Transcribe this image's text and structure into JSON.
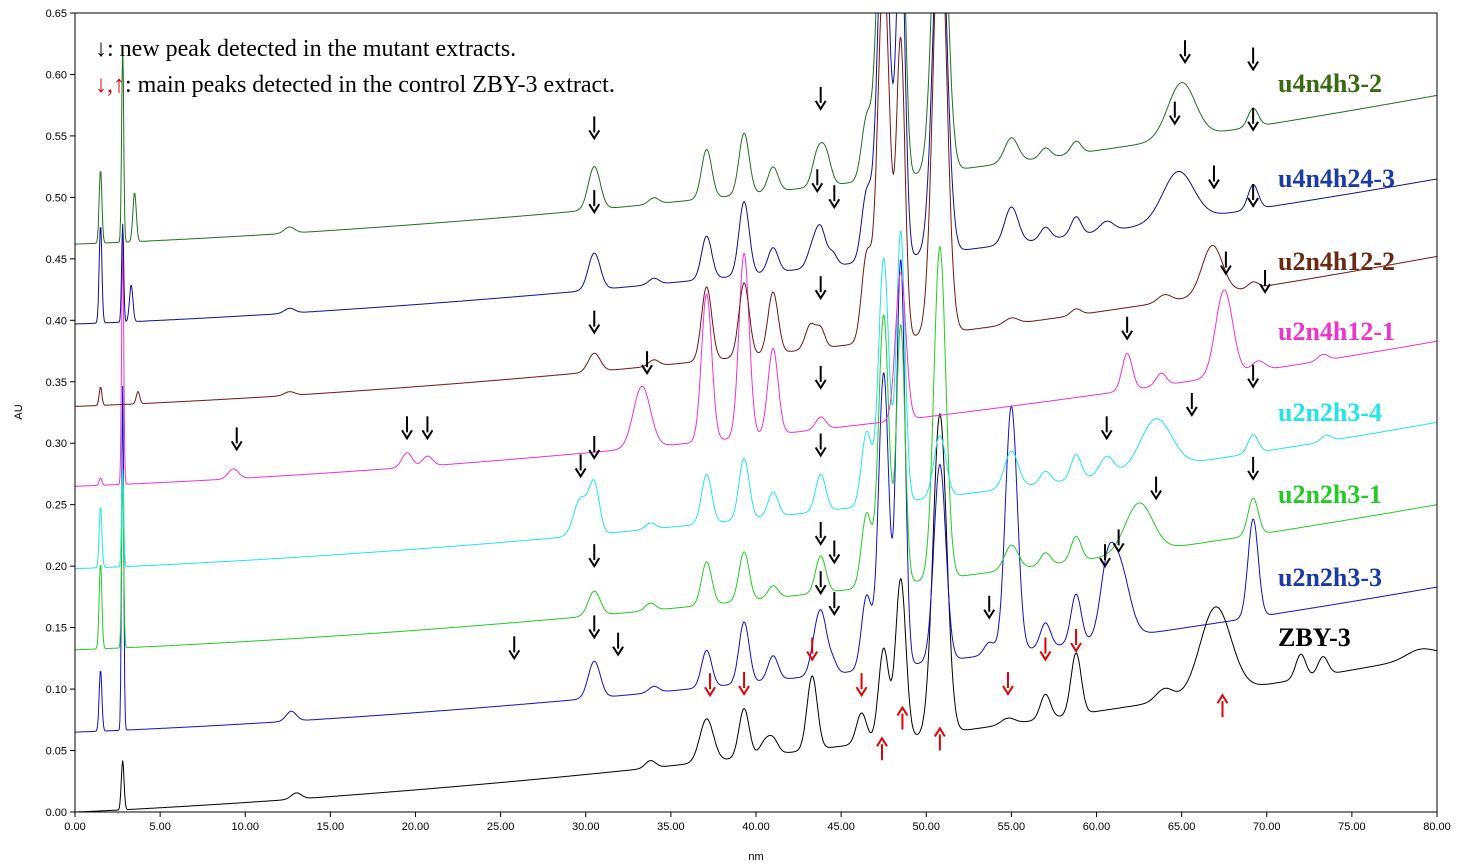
{
  "chart_data": {
    "type": "line",
    "title": "",
    "xlabel": "nm",
    "ylabel": "AU",
    "xlim": [
      0,
      80
    ],
    "ylim": [
      0,
      0.65
    ],
    "x_ticks": [
      0,
      5,
      10,
      15,
      20,
      25,
      30,
      35,
      40,
      45,
      50,
      55,
      60,
      65,
      70,
      75,
      80
    ],
    "x_tick_labels": [
      "0.00",
      "5.00",
      "10.00",
      "15.00",
      "20.00",
      "25.00",
      "30.00",
      "35.00",
      "40.00",
      "45.00",
      "50.00",
      "55.00",
      "60.00",
      "65.00",
      "70.00",
      "75.00",
      "80.00"
    ],
    "y_ticks": [
      0,
      0.05,
      0.1,
      0.15,
      0.2,
      0.25,
      0.3,
      0.35,
      0.4,
      0.45,
      0.5,
      0.55,
      0.6,
      0.65
    ],
    "y_tick_labels": [
      "0.00",
      "0.05",
      "0.10",
      "0.15",
      "0.20",
      "0.25",
      "0.30",
      "0.35",
      "0.40",
      "0.45",
      "0.50",
      "0.55",
      "0.60",
      "0.65"
    ],
    "annotations": {
      "line1_symbol": "↓",
      "line1_text": ": new peak detected in the mutant extracts.",
      "line2_symbol": "↓,↑",
      "line2_text": ": main peaks detected in the control ZBY-3 extract."
    },
    "series": [
      {
        "name": "ZBY-3",
        "color": "#000000",
        "baseline": 0.0,
        "end": 0.128,
        "ramp": 0.07,
        "peaks": [
          [
            2.8,
            0.04,
            0.08
          ],
          [
            13,
            0.005,
            0.3
          ],
          [
            33.8,
            0.006,
            0.3
          ],
          [
            37.1,
            0.035,
            0.4
          ],
          [
            39.3,
            0.04,
            0.3
          ],
          [
            40.5,
            0.01,
            0.3
          ],
          [
            41,
            0.012,
            0.3
          ],
          [
            43.3,
            0.06,
            0.3
          ],
          [
            46.2,
            0.025,
            0.3
          ],
          [
            47.5,
            0.075,
            0.3
          ],
          [
            48.5,
            0.13,
            0.3
          ],
          [
            50.8,
            0.26,
            0.4
          ],
          [
            54.8,
            0.005,
            0.4
          ],
          [
            57,
            0.02,
            0.3
          ],
          [
            58.8,
            0.05,
            0.3
          ],
          [
            64,
            0.01,
            0.5
          ],
          [
            67,
            0.07,
            0.9
          ],
          [
            72,
            0.02,
            0.3
          ],
          [
            73.3,
            0.015,
            0.3
          ],
          [
            79,
            0.007,
            0.8
          ]
        ]
      },
      {
        "name": "u2n2h3-3",
        "color": "#1010c8",
        "baseline": 0.065,
        "end": 0.183,
        "ramp": 0.06,
        "peaks": [
          [
            1.5,
            0.05,
            0.08
          ],
          [
            2.8,
            0.28,
            0.06
          ],
          [
            12.7,
            0.008,
            0.3
          ],
          [
            30.5,
            0.03,
            0.35
          ],
          [
            34,
            0.005,
            0.3
          ],
          [
            37.1,
            0.03,
            0.3
          ],
          [
            39.3,
            0.05,
            0.3
          ],
          [
            41,
            0.02,
            0.3
          ],
          [
            43.5,
            0.025,
            0.3
          ],
          [
            43.9,
            0.04,
            0.3
          ],
          [
            44.5,
            0.01,
            0.25
          ],
          [
            46.5,
            0.06,
            0.3
          ],
          [
            47.5,
            0.24,
            0.3
          ],
          [
            48.5,
            0.33,
            0.25
          ],
          [
            50.8,
            0.16,
            0.35
          ],
          [
            53.7,
            0.01,
            0.3
          ],
          [
            55,
            0.2,
            0.35
          ],
          [
            57,
            0.02,
            0.3
          ],
          [
            58.8,
            0.04,
            0.3
          ],
          [
            60.6,
            0.04,
            0.4
          ],
          [
            61.3,
            0.06,
            0.6
          ],
          [
            69.2,
            0.08,
            0.3
          ]
        ]
      },
      {
        "name": "u2n2h3-1",
        "color": "#22cc22",
        "baseline": 0.132,
        "end": 0.25,
        "ramp": 0.06,
        "peaks": [
          [
            1.5,
            0.07,
            0.08
          ],
          [
            2.8,
            0.14,
            0.06
          ],
          [
            30.5,
            0.02,
            0.35
          ],
          [
            33.8,
            0.006,
            0.3
          ],
          [
            37.1,
            0.035,
            0.3
          ],
          [
            39.3,
            0.04,
            0.3
          ],
          [
            41,
            0.01,
            0.3
          ],
          [
            43.8,
            0.03,
            0.3
          ],
          [
            46.5,
            0.06,
            0.3
          ],
          [
            47.5,
            0.22,
            0.3
          ],
          [
            48.5,
            0.21,
            0.25
          ],
          [
            50.8,
            0.27,
            0.35
          ],
          [
            55,
            0.02,
            0.4
          ],
          [
            57,
            0.01,
            0.3
          ],
          [
            58.8,
            0.02,
            0.3
          ],
          [
            62.5,
            0.04,
            0.8
          ],
          [
            69.2,
            0.03,
            0.3
          ]
        ]
      },
      {
        "name": "u2n2h3-4",
        "color": "#22e6e6",
        "baseline": 0.198,
        "end": 0.317,
        "ramp": 0.06,
        "peaks": [
          [
            1.5,
            0.05,
            0.08
          ],
          [
            2.8,
            0.08,
            0.06
          ],
          [
            29.7,
            0.03,
            0.4
          ],
          [
            30.5,
            0.04,
            0.3
          ],
          [
            33.8,
            0.005,
            0.3
          ],
          [
            37.1,
            0.04,
            0.3
          ],
          [
            39.3,
            0.05,
            0.3
          ],
          [
            41,
            0.02,
            0.3
          ],
          [
            43.8,
            0.03,
            0.3
          ],
          [
            46.5,
            0.06,
            0.3
          ],
          [
            47.5,
            0.2,
            0.3
          ],
          [
            48.5,
            0.22,
            0.25
          ],
          [
            50.8,
            0.05,
            0.35
          ],
          [
            55,
            0.03,
            0.4
          ],
          [
            57,
            0.01,
            0.3
          ],
          [
            58.8,
            0.02,
            0.3
          ],
          [
            60.6,
            0.015,
            0.4
          ],
          [
            63.5,
            0.04,
            0.9
          ],
          [
            69.2,
            0.015,
            0.3
          ],
          [
            73.5,
            0.005,
            0.3
          ]
        ]
      },
      {
        "name": "u2n4h12-1",
        "color": "#ee33cc",
        "baseline": 0.265,
        "end": 0.383,
        "ramp": 0.06,
        "peaks": [
          [
            1.5,
            0.006,
            0.08
          ],
          [
            2.8,
            0.2,
            0.06
          ],
          [
            9.3,
            0.008,
            0.3
          ],
          [
            19.5,
            0.012,
            0.3
          ],
          [
            20.7,
            0.008,
            0.3
          ],
          [
            33.3,
            0.05,
            0.5
          ],
          [
            37.1,
            0.12,
            0.3
          ],
          [
            39.3,
            0.15,
            0.3
          ],
          [
            41,
            0.07,
            0.3
          ],
          [
            43.8,
            0.01,
            0.3
          ],
          [
            48.5,
            0.12,
            0.3
          ],
          [
            61.8,
            0.03,
            0.3
          ],
          [
            63.8,
            0.01,
            0.3
          ],
          [
            67.5,
            0.07,
            0.5
          ],
          [
            69.5,
            0.008,
            0.4
          ],
          [
            73.3,
            0.005,
            0.3
          ]
        ]
      },
      {
        "name": "u2n4h12-2",
        "color": "#701810",
        "baseline": 0.33,
        "end": 0.452,
        "ramp": 0.06,
        "peaks": [
          [
            1.5,
            0.015,
            0.08
          ],
          [
            3.7,
            0.01,
            0.1
          ],
          [
            12.6,
            0.003,
            0.3
          ],
          [
            30.5,
            0.015,
            0.35
          ],
          [
            34,
            0.005,
            0.3
          ],
          [
            37.1,
            0.06,
            0.3
          ],
          [
            39.3,
            0.06,
            0.3
          ],
          [
            41,
            0.05,
            0.3
          ],
          [
            43.2,
            0.02,
            0.3
          ],
          [
            43.8,
            0.015,
            0.25
          ],
          [
            46.5,
            0.07,
            0.3
          ],
          [
            47.5,
            0.3,
            0.35
          ],
          [
            48.5,
            0.24,
            0.25
          ],
          [
            50.8,
            0.35,
            0.4
          ],
          [
            55,
            0.005,
            0.4
          ],
          [
            58.8,
            0.005,
            0.3
          ],
          [
            64,
            0.006,
            0.4
          ],
          [
            66.8,
            0.04,
            0.6
          ],
          [
            69.2,
            0.005,
            0.3
          ]
        ]
      },
      {
        "name": "u4n4h24-3",
        "color": "#101090",
        "baseline": 0.397,
        "end": 0.515,
        "ramp": 0.06,
        "peaks": [
          [
            1.5,
            0.08,
            0.08
          ],
          [
            2.8,
            0.08,
            0.06
          ],
          [
            3.3,
            0.03,
            0.1
          ],
          [
            12.6,
            0.004,
            0.3
          ],
          [
            30.5,
            0.03,
            0.35
          ],
          [
            34,
            0.005,
            0.3
          ],
          [
            37.1,
            0.035,
            0.3
          ],
          [
            39.3,
            0.06,
            0.3
          ],
          [
            41,
            0.02,
            0.3
          ],
          [
            43.3,
            0.015,
            0.3
          ],
          [
            43.8,
            0.03,
            0.3
          ],
          [
            44.5,
            0.01,
            0.25
          ],
          [
            46.5,
            0.055,
            0.3
          ],
          [
            47.5,
            0.3,
            0.35
          ],
          [
            48.5,
            0.28,
            0.25
          ],
          [
            50.8,
            0.3,
            0.4
          ],
          [
            55,
            0.03,
            0.4
          ],
          [
            57,
            0.01,
            0.3
          ],
          [
            58.8,
            0.015,
            0.3
          ],
          [
            60.6,
            0.008,
            0.4
          ],
          [
            64.8,
            0.04,
            0.9
          ],
          [
            69.2,
            0.02,
            0.3
          ]
        ]
      },
      {
        "name": "u4n4h3-2",
        "color": "#207020",
        "baseline": 0.462,
        "end": 0.583,
        "ramp": 0.06,
        "peaks": [
          [
            1.5,
            0.06,
            0.08
          ],
          [
            2.8,
            0.16,
            0.06
          ],
          [
            3.5,
            0.04,
            0.1
          ],
          [
            12.6,
            0.005,
            0.3
          ],
          [
            30.5,
            0.035,
            0.35
          ],
          [
            34,
            0.005,
            0.3
          ],
          [
            37.1,
            0.04,
            0.3
          ],
          [
            39.3,
            0.05,
            0.3
          ],
          [
            41,
            0.02,
            0.3
          ],
          [
            43.6,
            0.025,
            0.3
          ],
          [
            44.1,
            0.025,
            0.3
          ],
          [
            46.5,
            0.05,
            0.3
          ],
          [
            47.5,
            0.3,
            0.35
          ],
          [
            48.5,
            0.26,
            0.25
          ],
          [
            50.8,
            0.3,
            0.4
          ],
          [
            55,
            0.02,
            0.4
          ],
          [
            57,
            0.008,
            0.3
          ],
          [
            58.8,
            0.01,
            0.3
          ],
          [
            65,
            0.045,
            0.8
          ],
          [
            69.2,
            0.015,
            0.3
          ]
        ]
      }
    ],
    "trace_labels": [
      {
        "text": "u4n4h3-2",
        "color": "#3a6a10"
      },
      {
        "text": "u4n4h24-3",
        "color": "#1a3aa8"
      },
      {
        "text": "u2n4h12-2",
        "color": "#6a2a10"
      },
      {
        "text": "u2n4h12-1",
        "color": "#ee33cc"
      },
      {
        "text": "u2n2h3-4",
        "color": "#22e6e6"
      },
      {
        "text": "u2n2h3-1",
        "color": "#22cc22"
      },
      {
        "text": "u2n2h3-3",
        "color": "#1a3aa8"
      },
      {
        "text": "ZBY-3",
        "color": "#000000"
      }
    ],
    "black_arrows": [
      [
        65.2,
        0.61
      ],
      [
        69.2,
        0.604
      ],
      [
        43.8,
        0.572
      ],
      [
        30.5,
        0.548
      ],
      [
        64.6,
        0.56
      ],
      [
        69.2,
        0.555
      ],
      [
        43.6,
        0.505
      ],
      [
        44.6,
        0.492
      ],
      [
        30.5,
        0.488
      ],
      [
        66.9,
        0.508
      ],
      [
        69.2,
        0.493
      ],
      [
        67.6,
        0.438
      ],
      [
        69.9,
        0.423
      ],
      [
        43.8,
        0.418
      ],
      [
        61.8,
        0.385
      ],
      [
        30.5,
        0.39
      ],
      [
        33.6,
        0.357
      ],
      [
        43.8,
        0.345
      ],
      [
        9.5,
        0.295
      ],
      [
        19.5,
        0.304
      ],
      [
        20.7,
        0.304
      ],
      [
        65.6,
        0.323
      ],
      [
        60.6,
        0.304
      ],
      [
        69.2,
        0.346
      ],
      [
        29.7,
        0.273
      ],
      [
        30.5,
        0.288
      ],
      [
        43.8,
        0.29
      ],
      [
        63.5,
        0.255
      ],
      [
        69.2,
        0.271
      ],
      [
        43.8,
        0.218
      ],
      [
        44.6,
        0.203
      ],
      [
        61.3,
        0.212
      ],
      [
        60.5,
        0.2
      ],
      [
        30.5,
        0.2
      ],
      [
        43.8,
        0.178
      ],
      [
        44.6,
        0.161
      ],
      [
        53.7,
        0.158
      ],
      [
        30.5,
        0.142
      ],
      [
        31.9,
        0.128
      ],
      [
        25.8,
        0.125
      ]
    ],
    "red_down_arrows": [
      [
        37.3,
        0.095
      ],
      [
        39.3,
        0.096
      ],
      [
        43.3,
        0.124
      ],
      [
        46.2,
        0.095
      ],
      [
        54.8,
        0.096
      ],
      [
        57,
        0.124
      ],
      [
        58.8,
        0.131
      ]
    ],
    "red_up_arrows": [
      [
        47.4,
        0.06
      ],
      [
        48.6,
        0.085
      ],
      [
        50.8,
        0.068
      ],
      [
        67.4,
        0.095
      ]
    ]
  }
}
